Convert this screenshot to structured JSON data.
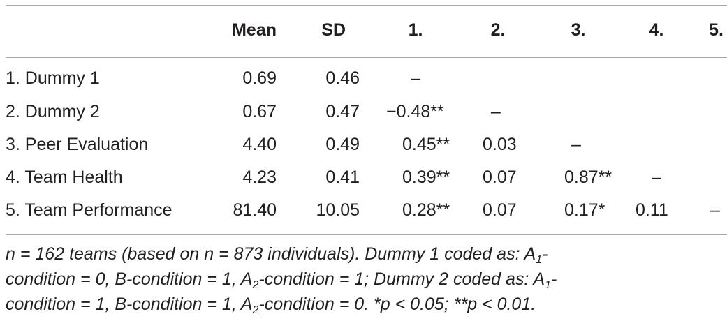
{
  "table": {
    "headers": [
      "",
      "Mean",
      "SD",
      "1.",
      "2.",
      "3.",
      "4.",
      "5."
    ],
    "rows": [
      [
        "1. Dummy 1",
        "0.69",
        "0.46",
        "–",
        "",
        "",
        "",
        ""
      ],
      [
        "2. Dummy 2",
        "0.67",
        "0.47",
        "−0.48**",
        "–",
        "",
        "",
        ""
      ],
      [
        "3. Peer Evaluation",
        "4.40",
        "0.49",
        "0.45**",
        "0.03",
        "–",
        "",
        ""
      ],
      [
        "4. Team Health",
        "4.23",
        "0.41",
        "0.39**",
        "0.07",
        "0.87**",
        "–",
        ""
      ],
      [
        "5. Team Performance",
        "81.40",
        "10.05",
        "0.28**",
        "0.07",
        "0.17*",
        "0.11",
        "–"
      ]
    ]
  },
  "note": {
    "line1": "n = 162 teams (based on n = 873 individuals). Dummy 1 coded as: A",
    "line1_sub": "1",
    "line1_tail": "-",
    "line2_a": "condition = 0, B-condition = 1, A",
    "line2_sub1": "2",
    "line2_b": "-condition = 1; Dummy 2 coded as: A",
    "line2_sub2": "1",
    "line2_c": "-",
    "line3_a": "condition = 1, B-condition = 1, A",
    "line3_sub": "2",
    "line3_b": "-condition = 0. *p < 0.05; **p < 0.01."
  }
}
